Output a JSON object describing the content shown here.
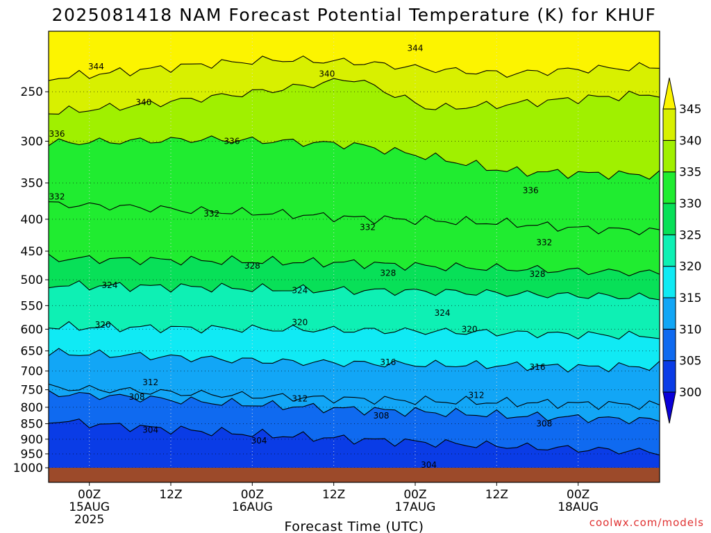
{
  "title": "2025081418 NAM Forecast Potential Temperature (K) for KHUF",
  "credit": "coolwx.com/models",
  "chart_data": {
    "type": "heatmap",
    "title": "2025081418 NAM Forecast Potential Temperature (K) for KHUF",
    "xlabel": "Forecast Time (UTC)",
    "ylabel": "",
    "x_range_hours": [
      -6,
      84
    ],
    "x_ticks": [
      {
        "hour": 0,
        "lines": [
          "00Z",
          "15AUG",
          "2025"
        ]
      },
      {
        "hour": 12,
        "lines": [
          "12Z"
        ]
      },
      {
        "hour": 24,
        "lines": [
          "00Z",
          "16AUG"
        ]
      },
      {
        "hour": 36,
        "lines": [
          "12Z"
        ]
      },
      {
        "hour": 48,
        "lines": [
          "00Z",
          "17AUG"
        ]
      },
      {
        "hour": 60,
        "lines": [
          "12Z"
        ]
      },
      {
        "hour": 72,
        "lines": [
          "00Z",
          "18AUG"
        ]
      }
    ],
    "y_ticks": [
      250,
      300,
      350,
      400,
      450,
      500,
      550,
      600,
      650,
      700,
      750,
      800,
      850,
      900,
      950,
      1000
    ],
    "y_range_hpa": [
      200,
      1000
    ],
    "y_scale": "log-pressure",
    "colorbar": {
      "levels": [
        300,
        305,
        310,
        315,
        320,
        325,
        330,
        335,
        340,
        345
      ],
      "colors": [
        "#0a00d8",
        "#0a3ce6",
        "#0f6af0",
        "#12a6f6",
        "#10eaf4",
        "#0ef0b4",
        "#08e058",
        "#20ec30",
        "#a0f000",
        "#d8f000",
        "#fcf400"
      ],
      "extend": "both"
    },
    "contour_lines": [
      {
        "value": 344,
        "pressure": [
          238,
          232,
          226,
          222,
          224,
          230,
          234,
          230,
          228
        ]
      },
      {
        "value": 340,
        "pressure": [
          270,
          264,
          256,
          248,
          238,
          266,
          262,
          256,
          252
        ]
      },
      {
        "value": 336,
        "pressure": [
          302,
          300,
          298,
          300,
          304,
          318,
          335,
          338,
          340
        ]
      },
      {
        "value": 332,
        "pressure": [
          378,
          382,
          388,
          392,
          398,
          402,
          406,
          414,
          418
        ]
      },
      {
        "value": 328,
        "pressure": [
          462,
          464,
          466,
          468,
          470,
          476,
          480,
          484,
          488
        ]
      },
      {
        "value": 324,
        "pressure": [
          510,
          512,
          514,
          518,
          520,
          522,
          526,
          530,
          534
        ]
      },
      {
        "value": 320,
        "pressure": [
          595,
          596,
          598,
          600,
          602,
          605,
          608,
          612,
          616
        ]
      },
      {
        "value": 316,
        "pressure": [
          655,
          660,
          668,
          676,
          680,
          684,
          686,
          690,
          688
        ]
      },
      {
        "value": 312,
        "pressure": [
          744,
          752,
          762,
          770,
          776,
          782,
          786,
          790,
          794
        ]
      },
      {
        "value": 308,
        "pressure": [
          760,
          770,
          784,
          796,
          806,
          815,
          825,
          832,
          840
        ]
      },
      {
        "value": 304,
        "pressure": [
          840,
          858,
          874,
          888,
          900,
          912,
          924,
          934,
          944
        ]
      }
    ],
    "contour_label_positions": [
      {
        "text": "344",
        "hour": 1,
        "pressure": 228
      },
      {
        "text": "344",
        "hour": 48,
        "pressure": 213
      },
      {
        "text": "340",
        "hour": 8,
        "pressure": 260
      },
      {
        "text": "340",
        "hour": 35,
        "pressure": 234
      },
      {
        "text": "336",
        "hour": -6,
        "pressure": 292
      },
      {
        "text": "336",
        "hour": 21,
        "pressure": 300
      },
      {
        "text": "336",
        "hour": 65,
        "pressure": 360
      },
      {
        "text": "332",
        "hour": -9,
        "pressure": 368
      },
      {
        "text": "332",
        "hour": 18,
        "pressure": 392
      },
      {
        "text": "332",
        "hour": 41,
        "pressure": 412
      },
      {
        "text": "332",
        "hour": 67,
        "pressure": 436
      },
      {
        "text": "328",
        "hour": 24,
        "pressure": 475
      },
      {
        "text": "328",
        "hour": 44,
        "pressure": 488
      },
      {
        "text": "328",
        "hour": 66,
        "pressure": 490
      },
      {
        "text": "324",
        "hour": 3,
        "pressure": 510
      },
      {
        "text": "324",
        "hour": 31,
        "pressure": 520
      },
      {
        "text": "324",
        "hour": 52,
        "pressure": 565
      },
      {
        "text": "320",
        "hour": 2,
        "pressure": 590
      },
      {
        "text": "320",
        "hour": 31,
        "pressure": 585
      },
      {
        "text": "320",
        "hour": 56,
        "pressure": 600
      },
      {
        "text": "316",
        "hour": 44,
        "pressure": 678
      },
      {
        "text": "316",
        "hour": 66,
        "pressure": 690
      },
      {
        "text": "312",
        "hour": 9,
        "pressure": 730
      },
      {
        "text": "312",
        "hour": 31,
        "pressure": 775
      },
      {
        "text": "312",
        "hour": 57,
        "pressure": 765
      },
      {
        "text": "308",
        "hour": 7,
        "pressure": 770
      },
      {
        "text": "308",
        "hour": 43,
        "pressure": 825
      },
      {
        "text": "308",
        "hour": 67,
        "pressure": 850
      },
      {
        "text": "304",
        "hour": 9,
        "pressure": 870
      },
      {
        "text": "304",
        "hour": 25,
        "pressure": 905
      },
      {
        "text": "304",
        "hour": 50,
        "pressure": 990
      }
    ],
    "grid": true,
    "legend": "colorbar-right",
    "ground_band_hpa": 1000
  }
}
